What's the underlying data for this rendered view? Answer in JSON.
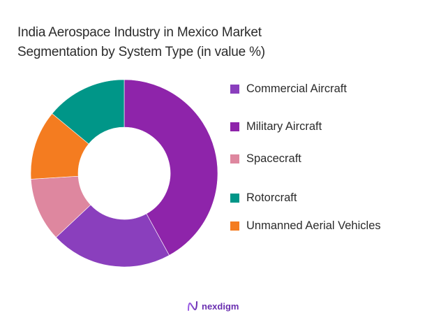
{
  "title": {
    "line1": "India Aerospace Industry in Mexico Market",
    "line2": "Segmentation by System Type (in value %)"
  },
  "legend": [
    {
      "label": "Commercial Aircraft",
      "color": "#8A3FBD"
    },
    {
      "label": "Military Aircraft",
      "color": "#8E24AA"
    },
    {
      "label": "Spacecraft",
      "color": "#DE879F"
    },
    {
      "label": "Rotorcraft",
      "color": "#009688"
    },
    {
      "label": "Unmanned Aerial Vehicles",
      "color": "#F47C20"
    }
  ],
  "logo": {
    "text": "nexdigm",
    "color": "#6A2FB0"
  },
  "chart_data": {
    "type": "pie",
    "variant": "donut",
    "title": "India Aerospace Industry in Mexico Market Segmentation by System Type (in value %)",
    "categories": [
      "Military Aircraft",
      "Commercial Aircraft",
      "Spacecraft",
      "Unmanned Aerial Vehicles",
      "Rotorcraft"
    ],
    "values": [
      42,
      21,
      11,
      12,
      14
    ],
    "colors": [
      "#8E24AA",
      "#8A3FBD",
      "#DE879F",
      "#F47C20",
      "#009688"
    ],
    "start_angle_deg": 0,
    "direction": "clockwise",
    "legend_position": "right",
    "legend_order": [
      "Commercial Aircraft",
      "Military Aircraft",
      "Spacecraft",
      "Rotorcraft",
      "Unmanned Aerial Vehicles"
    ],
    "data_labels": false
  }
}
